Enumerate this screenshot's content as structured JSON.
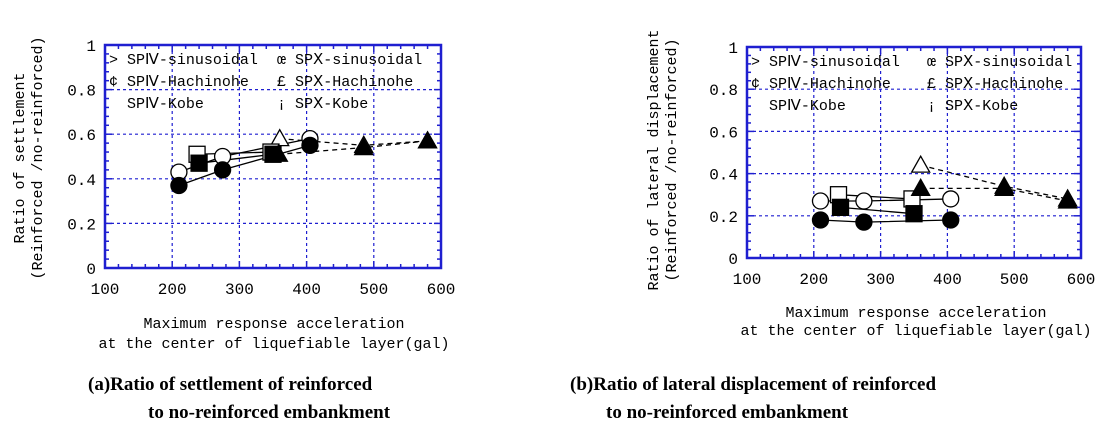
{
  "colors": {
    "grid": "#1f1fd0",
    "axis": "#1f1fd0",
    "marker": "#000000",
    "background": "#ffffff"
  },
  "legend_entries": [
    {
      "symbol_text": ">",
      "label": "SPⅣ-sinusoidal",
      "marker": "circle-open"
    },
    {
      "symbol_text": "¢",
      "label": "SPⅣ-Hachinohe",
      "marker": "square-open"
    },
    {
      "symbol_text": "",
      "label": "SPⅣ-Kobe",
      "marker": "triangle-open"
    },
    {
      "symbol_text": "œ",
      "label": "SPⅩ-sinusoidal",
      "marker": "circle-filled"
    },
    {
      "symbol_text": "£",
      "label": "SPⅩ-Hachinohe",
      "marker": "square-filled"
    },
    {
      "symbol_text": "¡",
      "label": "SPⅩ-Kobe",
      "marker": "triangle-filled"
    }
  ],
  "chart_data": [
    {
      "id": "a",
      "type": "line",
      "caption_line1": "(a)Ratio of settlement of reinforced",
      "caption_line2": "to no-reinforced embankment",
      "xlabel_line1": "Maximum response acceleration",
      "xlabel_line2": "at the center of liquefiable layer(gal)",
      "ylabel_line1": "Ratio of settlement",
      "ylabel_line2": "(Reinforced /no-reinforced)",
      "xlim": [
        100,
        600
      ],
      "ylim": [
        0,
        1
      ],
      "xticks": [
        100,
        200,
        300,
        400,
        500,
        600
      ],
      "yticks": [
        0,
        0.2,
        0.4,
        0.6,
        0.8,
        1
      ],
      "ytick_labels": [
        "0",
        "0.2",
        "0.4",
        "0.6",
        "0.8",
        "1"
      ],
      "grid": true,
      "legend_position": "top-left",
      "series": [
        {
          "name": "SPⅣ-sinusoidal",
          "marker": "circle-open",
          "line": "solid",
          "x": [
            210,
            275,
            405
          ],
          "y": [
            0.43,
            0.5,
            0.58
          ]
        },
        {
          "name": "SPⅣ-Hachinohe",
          "marker": "square-open",
          "line": "solid",
          "x": [
            237,
            347
          ],
          "y": [
            0.51,
            0.52
          ]
        },
        {
          "name": "SPⅣ-Kobe",
          "marker": "triangle-open",
          "line": "dashed",
          "x": [
            360,
            485,
            580
          ],
          "y": [
            0.58,
            0.55,
            0.57
          ]
        },
        {
          "name": "SPⅩ-sinusoidal",
          "marker": "circle-filled",
          "line": "solid",
          "x": [
            210,
            275,
            405
          ],
          "y": [
            0.37,
            0.44,
            0.55
          ]
        },
        {
          "name": "SPⅩ-Hachinohe",
          "marker": "square-filled",
          "line": "solid",
          "x": [
            240,
            350
          ],
          "y": [
            0.47,
            0.51
          ]
        },
        {
          "name": "SPⅩ-Kobe",
          "marker": "triangle-filled",
          "line": "dashed",
          "x": [
            358,
            485,
            580
          ],
          "y": [
            0.51,
            0.54,
            0.57
          ]
        }
      ]
    },
    {
      "id": "b",
      "type": "line",
      "caption_line1": "(b)Ratio of lateral displacement of reinforced",
      "caption_line2": "to no-reinforced embankment",
      "xlabel_line1": "Maximum response acceleration",
      "xlabel_line2": "at the center of liquefiable layer(gal)",
      "ylabel_line1": "Ratio of lateral displacement",
      "ylabel_line2": "(Reinforced /no-reinforced)",
      "xlim": [
        100,
        600
      ],
      "ylim": [
        0,
        1
      ],
      "xticks": [
        100,
        200,
        300,
        400,
        500,
        600
      ],
      "yticks": [
        0,
        0.2,
        0.4,
        0.6,
        0.8,
        1
      ],
      "ytick_labels": [
        "0",
        "0.2",
        "0.4",
        "0.6",
        "0.8",
        "1"
      ],
      "grid": true,
      "legend_position": "top-left",
      "series": [
        {
          "name": "SPⅣ-sinusoidal",
          "marker": "circle-open",
          "line": "solid",
          "x": [
            210,
            275,
            405
          ],
          "y": [
            0.27,
            0.27,
            0.28
          ]
        },
        {
          "name": "SPⅣ-Hachinohe",
          "marker": "square-open",
          "line": "solid",
          "x": [
            237,
            347
          ],
          "y": [
            0.3,
            0.28
          ]
        },
        {
          "name": "SPⅣ-Kobe",
          "marker": "triangle-open",
          "line": "dashed",
          "x": [
            360,
            485,
            580
          ],
          "y": [
            0.44,
            0.34,
            0.28
          ]
        },
        {
          "name": "SPⅩ-sinusoidal",
          "marker": "circle-filled",
          "line": "solid",
          "x": [
            210,
            275,
            405
          ],
          "y": [
            0.18,
            0.17,
            0.18
          ]
        },
        {
          "name": "SPⅩ-Hachinohe",
          "marker": "square-filled",
          "line": "solid",
          "x": [
            240,
            350
          ],
          "y": [
            0.24,
            0.21
          ]
        },
        {
          "name": "SPⅩ-Kobe",
          "marker": "triangle-filled",
          "line": "dashed",
          "x": [
            360,
            485,
            580
          ],
          "y": [
            0.33,
            0.33,
            0.27
          ]
        }
      ]
    }
  ]
}
